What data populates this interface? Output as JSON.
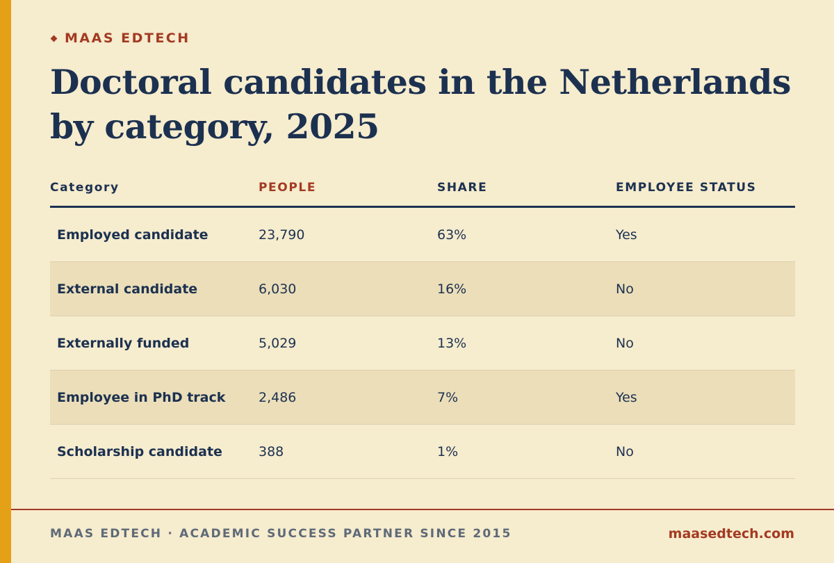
{
  "brand": {
    "name": "MAAS EDTECH"
  },
  "title": "Doctoral candidates in the Netherlands by category, 2025",
  "chart_data": {
    "type": "table",
    "title": "Doctoral candidates in the Netherlands by category, 2025",
    "columns": [
      "Category",
      "PEOPLE",
      "SHARE",
      "EMPLOYEE STATUS"
    ],
    "rows": [
      {
        "category": "Employed candidate",
        "people": "23,790",
        "share": "63%",
        "status": "Yes"
      },
      {
        "category": "External candidate",
        "people": "6,030",
        "share": "16%",
        "status": "No"
      },
      {
        "category": "Externally funded",
        "people": "5,029",
        "share": "13%",
        "status": "No"
      },
      {
        "category": "Employee in PhD track",
        "people": "2,486",
        "share": "7%",
        "status": "Yes"
      },
      {
        "category": "Scholarship candidate",
        "people": "388",
        "share": "1%",
        "status": "No"
      }
    ],
    "values": [
      23790,
      6030,
      5029,
      2486,
      388
    ],
    "shares_percent": [
      63,
      16,
      13,
      7,
      1
    ]
  },
  "footer": {
    "tagline": "MAAS EDTECH · ACADEMIC SUCCESS PARTNER SINCE 2015",
    "url": "maasedtech.com"
  },
  "colors": {
    "background": "#f6ecce",
    "accent_bar": "#e4a118",
    "brand_red": "#a33a22",
    "navy": "#1c3150",
    "stripe": "#ebdeb9"
  }
}
